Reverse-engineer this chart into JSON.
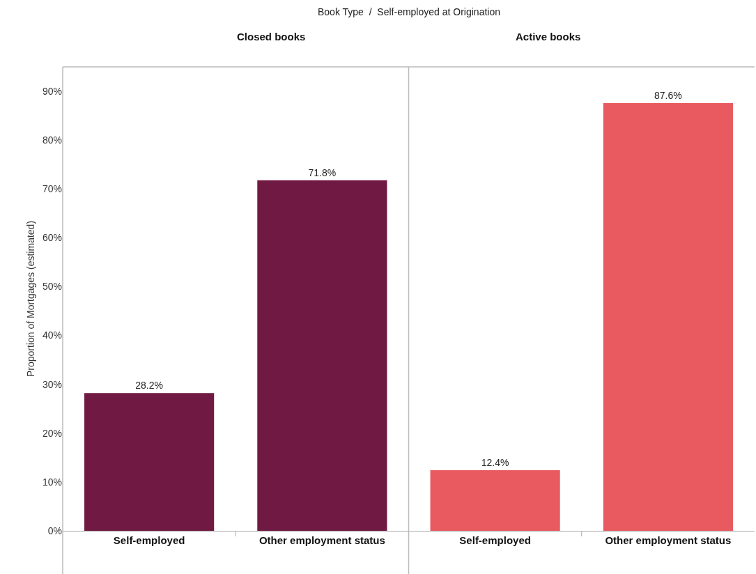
{
  "chart_data": [
    {
      "type": "bar",
      "title": "Closed books",
      "annotations": [
        "Book Type  /  Self-employed at Origination"
      ],
      "ylabel": "Proportion of Mortgages (estimated)",
      "categories": [
        "Self-employed",
        "Other employment status"
      ],
      "values": [
        28.2,
        71.8
      ],
      "value_labels": [
        "28.2%",
        "71.8%"
      ],
      "color": "#701a43",
      "ylim": [
        0,
        95
      ],
      "yticks": [
        {
          "value": 0,
          "label": "0%"
        },
        {
          "value": 10,
          "label": "10%"
        },
        {
          "value": 20,
          "label": "20%"
        },
        {
          "value": 30,
          "label": "30%"
        },
        {
          "value": 40,
          "label": "40%"
        },
        {
          "value": 50,
          "label": "50%"
        },
        {
          "value": 60,
          "label": "60%"
        },
        {
          "value": 70,
          "label": "70%"
        },
        {
          "value": 80,
          "label": "80%"
        },
        {
          "value": 90,
          "label": "90%"
        }
      ]
    },
    {
      "type": "bar",
      "title": "Active books",
      "categories": [
        "Self-employed",
        "Other employment status"
      ],
      "values": [
        12.4,
        87.6
      ],
      "value_labels": [
        "12.4%",
        "87.6%"
      ],
      "color": "#e95a60",
      "ylim": [
        0,
        95
      ],
      "tick_labels": "x"
    }
  ]
}
